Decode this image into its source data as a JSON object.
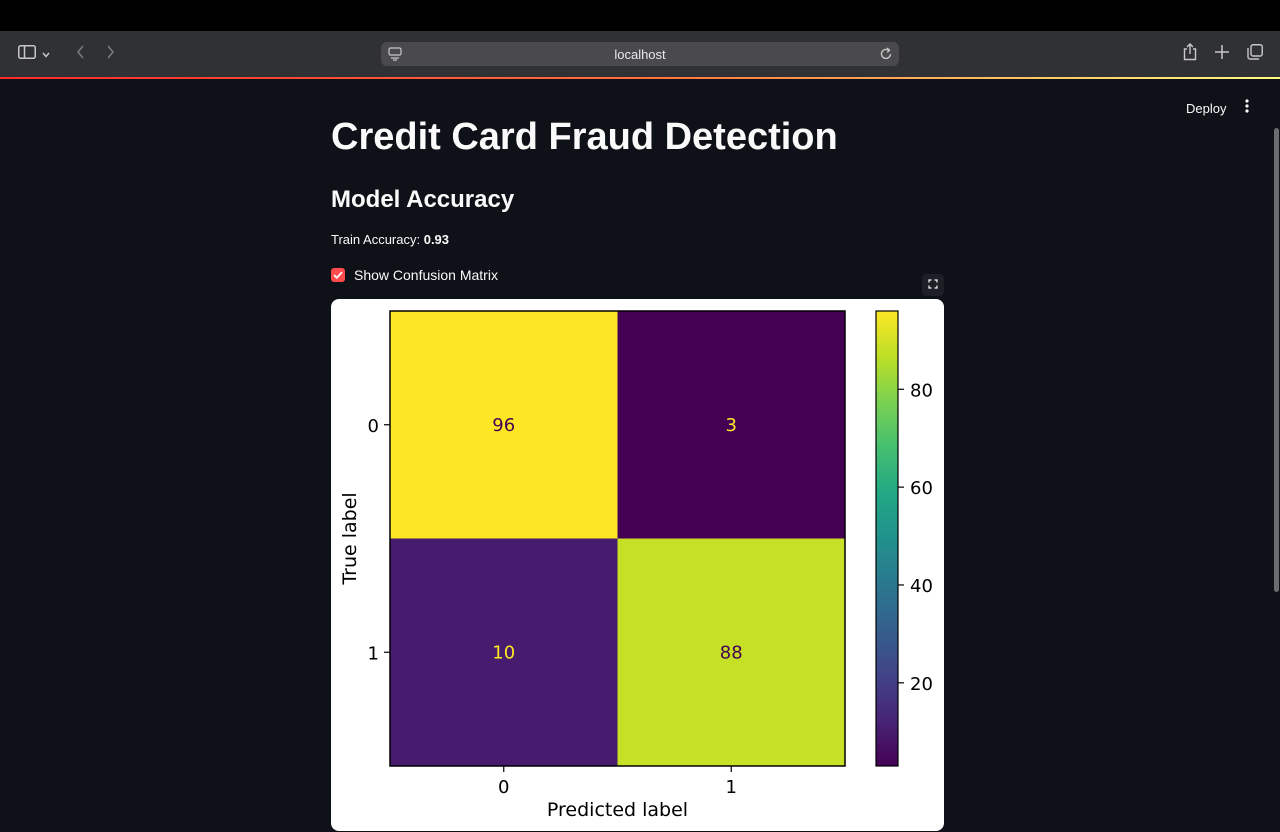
{
  "browser": {
    "url": "localhost"
  },
  "toolbar": {
    "deploy_label": "Deploy"
  },
  "main": {
    "title": "Credit Card Fraud Detection",
    "section_title": "Model Accuracy",
    "accuracy_label": "Train Accuracy: ",
    "accuracy_value": "0.93",
    "checkbox_label": "Show Confusion Matrix",
    "checkbox_checked": true
  },
  "colors": {
    "accent": "#ff4b4b",
    "background": "#0e1117"
  },
  "chart_data": {
    "type": "heatmap",
    "x_categories": [
      "0",
      "1"
    ],
    "y_categories": [
      "0",
      "1"
    ],
    "values": [
      [
        96,
        3
      ],
      [
        10,
        88
      ]
    ],
    "xlabel": "Predicted label",
    "ylabel": "True label",
    "colormap": "viridis",
    "colorbar_ticks": [
      20,
      40,
      60,
      80
    ],
    "colorbar_range": [
      3,
      96
    ]
  }
}
